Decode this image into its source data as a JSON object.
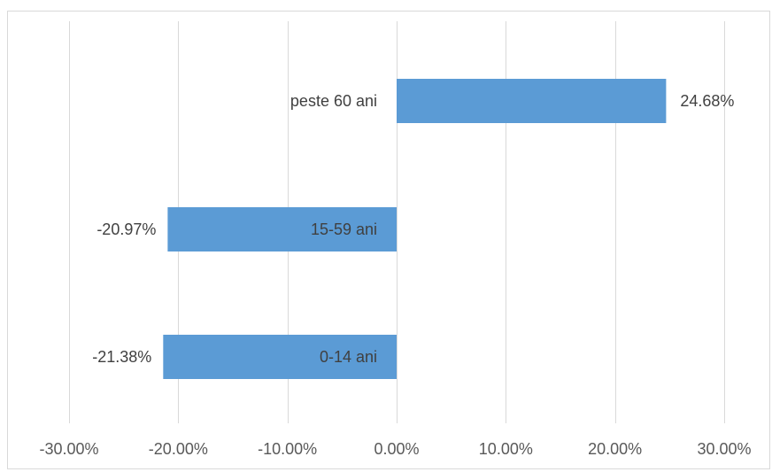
{
  "chart_data": {
    "type": "bar",
    "orientation": "horizontal",
    "categories": [
      "peste 60 ani",
      "15-59 ani",
      "0-14 ani"
    ],
    "values": [
      24.68,
      -20.97,
      -21.38
    ],
    "value_labels": [
      "24.68%",
      "-20.97%",
      "-21.38%"
    ],
    "xlim": [
      -30,
      30
    ],
    "x_ticks": [
      -30,
      -20,
      -10,
      0,
      10,
      20,
      30
    ],
    "x_tick_labels": [
      "-30.00%",
      "-20.00%",
      "-10.00%",
      "0.00%",
      "10.00%",
      "20.00%",
      "30.00%"
    ],
    "grid": "vertical",
    "legend": "none",
    "title": "",
    "xlabel": "",
    "ylabel": "",
    "bar_color": "#5b9bd5",
    "grid_color": "#d9d9d9"
  }
}
